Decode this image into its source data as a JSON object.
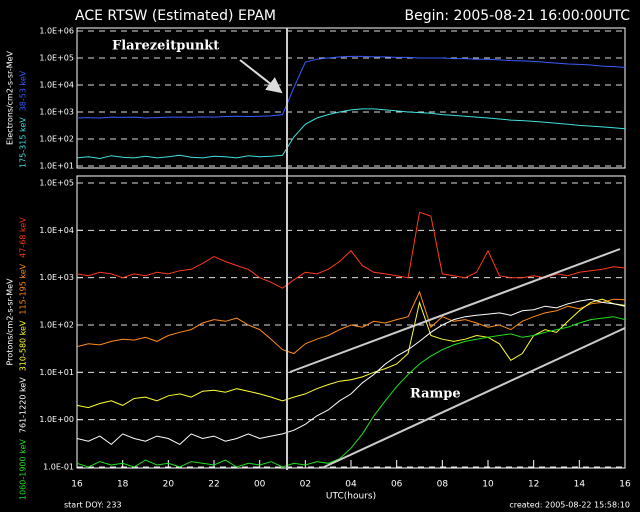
{
  "header": {
    "title": "ACE RTSW (Estimated) EPAM",
    "begin": "Begin: 2005-08-21 16:00:00UTC"
  },
  "footer": {
    "start_doy": "start DOY: 233",
    "created": "created:  2005-08-22 15:58:10"
  },
  "chart_data": [
    {
      "type": "line",
      "ylabel": "Electrons/cm2-s-sr-MeV",
      "yscale": "log",
      "grid": true,
      "annotations": [
        "Flarezeitpunkt"
      ],
      "xlim": [
        0,
        24
      ],
      "ylim": [
        10,
        1000000
      ],
      "yticks": [
        {
          "value": 10,
          "label": "1.0E+01"
        },
        {
          "value": 100,
          "label": "1.0E+02"
        },
        {
          "value": 1000,
          "label": "1.0E+03"
        },
        {
          "value": 10000,
          "label": "1.0E+04"
        },
        {
          "value": 100000,
          "label": "1.0E+05"
        },
        {
          "value": 1000000,
          "label": "1.0E+06"
        }
      ],
      "x": [
        0,
        0.5,
        1,
        1.5,
        2,
        2.5,
        3,
        3.5,
        4,
        4.5,
        5,
        5.5,
        6,
        6.5,
        7,
        7.5,
        8,
        8.5,
        9,
        9.5,
        10,
        10.5,
        11,
        11.5,
        12,
        12.5,
        13,
        13.5,
        14,
        14.5,
        15,
        15.5,
        16,
        16.5,
        17,
        17.5,
        18,
        18.5,
        19,
        19.5,
        20,
        20.5,
        21,
        21.5,
        22,
        22.5,
        23,
        23.5,
        24
      ],
      "series": [
        {
          "name": "38-53 keV",
          "color": "#3a5cff",
          "values": [
            600,
            620,
            600,
            650,
            630,
            650,
            600,
            620,
            650,
            650,
            640,
            660,
            650,
            680,
            700,
            680,
            700,
            720,
            800,
            8000,
            70000,
            90000,
            100000,
            110000,
            115000,
            115000,
            110000,
            110000,
            105000,
            105000,
            100000,
            100000,
            100000,
            95000,
            95000,
            90000,
            90000,
            85000,
            80000,
            78000,
            75000,
            70000,
            65000,
            60000,
            58000,
            55000,
            50000,
            48000,
            45000
          ]
        },
        {
          "name": "175-315 keV",
          "color": "#40e0e0",
          "values": [
            20,
            22,
            19,
            24,
            21,
            20,
            23,
            20,
            22,
            25,
            21,
            20,
            23,
            22,
            20,
            24,
            22,
            23,
            25,
            120,
            350,
            600,
            800,
            1000,
            1200,
            1300,
            1300,
            1200,
            1100,
            1000,
            950,
            900,
            800,
            750,
            700,
            650,
            600,
            550,
            500,
            480,
            450,
            420,
            380,
            350,
            320,
            300,
            280,
            260,
            240
          ]
        }
      ]
    },
    {
      "type": "line",
      "ylabel": "Protons/cm2-s-sr-MeV",
      "xlabel": "UTC(hours)",
      "yscale": "log",
      "grid": true,
      "annotations": [
        "Rampe"
      ],
      "xlim": [
        0,
        24
      ],
      "ylim": [
        0.1,
        100000
      ],
      "xticks": [
        {
          "value": 0,
          "label": "16"
        },
        {
          "value": 2,
          "label": "18"
        },
        {
          "value": 4,
          "label": "20"
        },
        {
          "value": 6,
          "label": "22"
        },
        {
          "value": 8,
          "label": "00"
        },
        {
          "value": 10,
          "label": "02"
        },
        {
          "value": 12,
          "label": "04"
        },
        {
          "value": 14,
          "label": "06"
        },
        {
          "value": 16,
          "label": "08"
        },
        {
          "value": 18,
          "label": "10"
        },
        {
          "value": 20,
          "label": "12"
        },
        {
          "value": 22,
          "label": "14"
        },
        {
          "value": 24,
          "label": "16"
        }
      ],
      "yticks": [
        {
          "value": 0.1,
          "label": "1.0E-01"
        },
        {
          "value": 1,
          "label": "1.0E+00"
        },
        {
          "value": 10,
          "label": "1.0E+01"
        },
        {
          "value": 100,
          "label": "1.0E+02"
        },
        {
          "value": 1000,
          "label": "1.0E+03"
        },
        {
          "value": 10000,
          "label": "1.0E+04"
        },
        {
          "value": 100000,
          "label": "1.0E+05"
        }
      ],
      "x": [
        0,
        0.5,
        1,
        1.5,
        2,
        2.5,
        3,
        3.5,
        4,
        4.5,
        5,
        5.5,
        6,
        6.5,
        7,
        7.5,
        8,
        8.5,
        9,
        9.5,
        10,
        10.5,
        11,
        11.5,
        12,
        12.5,
        13,
        13.5,
        14,
        14.5,
        15,
        15.5,
        16,
        16.5,
        17,
        17.5,
        18,
        18.5,
        19,
        19.5,
        20,
        20.5,
        21,
        21.5,
        22,
        22.5,
        23,
        23.5,
        24
      ],
      "series": [
        {
          "name": "47-68 keV",
          "color": "#ff3a1a",
          "values": [
            1200,
            1100,
            1300,
            1200,
            1000,
            1200,
            1100,
            1300,
            1200,
            1400,
            1500,
            2000,
            2800,
            2200,
            1800,
            1500,
            1000,
            800,
            600,
            900,
            1300,
            1200,
            1500,
            2200,
            3700,
            1800,
            1300,
            1200,
            1100,
            1000,
            24000,
            20000,
            1200,
            1100,
            1000,
            1300,
            3700,
            1100,
            1000,
            1000,
            1100,
            1000,
            1200,
            1100,
            1300,
            1400,
            1500,
            1700,
            1600
          ]
        },
        {
          "name": "115-195 keV",
          "color": "#ff8c1a",
          "values": [
            35,
            40,
            38,
            45,
            50,
            48,
            55,
            45,
            60,
            70,
            80,
            110,
            130,
            120,
            140,
            100,
            80,
            50,
            30,
            25,
            40,
            50,
            60,
            80,
            100,
            90,
            120,
            110,
            130,
            150,
            500,
            90,
            150,
            120,
            130,
            110,
            90,
            100,
            80,
            120,
            150,
            180,
            200,
            250,
            220,
            280,
            300,
            350,
            340
          ]
        },
        {
          "name": "310-580 keV",
          "color": "#ffff30",
          "values": [
            2,
            1.8,
            2.2,
            2.5,
            2,
            2.8,
            3,
            2.5,
            3.2,
            3.5,
            3,
            4,
            4.2,
            3.8,
            4.5,
            4,
            3.5,
            3,
            2.5,
            3,
            3.5,
            4.5,
            5.5,
            6.5,
            7,
            8,
            10,
            12,
            15,
            25,
            300,
            60,
            50,
            45,
            50,
            60,
            55,
            40,
            18,
            25,
            60,
            80,
            70,
            120,
            200,
            300,
            350,
            280,
            260
          ]
        },
        {
          "name": "761-1220 keV",
          "color": "#ffffff",
          "values": [
            0.4,
            0.35,
            0.45,
            0.3,
            0.5,
            0.4,
            0.35,
            0.45,
            0.4,
            0.3,
            0.5,
            0.4,
            0.45,
            0.35,
            0.4,
            0.5,
            0.4,
            0.45,
            0.5,
            0.6,
            0.8,
            1.2,
            1.6,
            2.5,
            3.5,
            6,
            9,
            15,
            22,
            30,
            45,
            70,
            100,
            130,
            150,
            160,
            170,
            180,
            160,
            200,
            210,
            250,
            230,
            280,
            320,
            350,
            300,
            280,
            250
          ]
        },
        {
          "name": "1060-1900 keV",
          "color": "#20e020",
          "values": [
            0.12,
            0.1,
            0.13,
            0.11,
            0.12,
            0.1,
            0.14,
            0.11,
            0.12,
            0.1,
            0.13,
            0.12,
            0.11,
            0.14,
            0.1,
            0.12,
            0.11,
            0.13,
            0.1,
            0.12,
            0.11,
            0.13,
            0.12,
            0.15,
            0.25,
            0.5,
            1.2,
            2.5,
            5,
            9,
            15,
            22,
            30,
            38,
            45,
            50,
            55,
            60,
            65,
            55,
            60,
            70,
            80,
            90,
            110,
            130,
            140,
            150,
            130
          ]
        }
      ]
    }
  ]
}
